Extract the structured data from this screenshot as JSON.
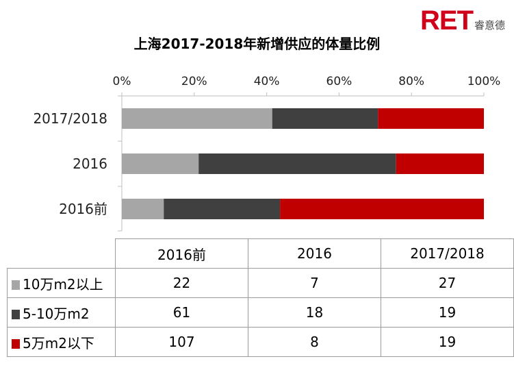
{
  "logo": {
    "mark": "RET",
    "cn": "睿意德"
  },
  "chart_data": {
    "type": "bar",
    "orientation": "horizontal",
    "stacked": "percent",
    "title": "上海2017-2018年新增供应的体量比例",
    "categories": [
      "2017/2018",
      "2016",
      "2016前"
    ],
    "series": [
      {
        "name": "10万m2以上",
        "color": "#a6a6a6",
        "values": [
          27,
          7,
          22
        ]
      },
      {
        "name": "5-10万m2",
        "color": "#404040",
        "values": [
          19,
          18,
          61
        ]
      },
      {
        "name": "5万m2以下",
        "color": "#c00000",
        "values": [
          19,
          8,
          107
        ]
      }
    ],
    "xlim": [
      0,
      100
    ],
    "xticks": [
      "0%",
      "20%",
      "40%",
      "60%",
      "80%",
      "100%"
    ],
    "xlabel": "",
    "ylabel": ""
  },
  "table": {
    "columns": [
      "2016前",
      "2016",
      "2017/2018"
    ],
    "rows": [
      {
        "label": "10万m2以上",
        "color": "#a6a6a6",
        "values": [
          "22",
          "7",
          "27"
        ]
      },
      {
        "label": "5-10万m2",
        "color": "#404040",
        "values": [
          "61",
          "18",
          "19"
        ]
      },
      {
        "label": "5万m2以下",
        "color": "#c00000",
        "values": [
          "107",
          "8",
          "19"
        ]
      }
    ]
  }
}
